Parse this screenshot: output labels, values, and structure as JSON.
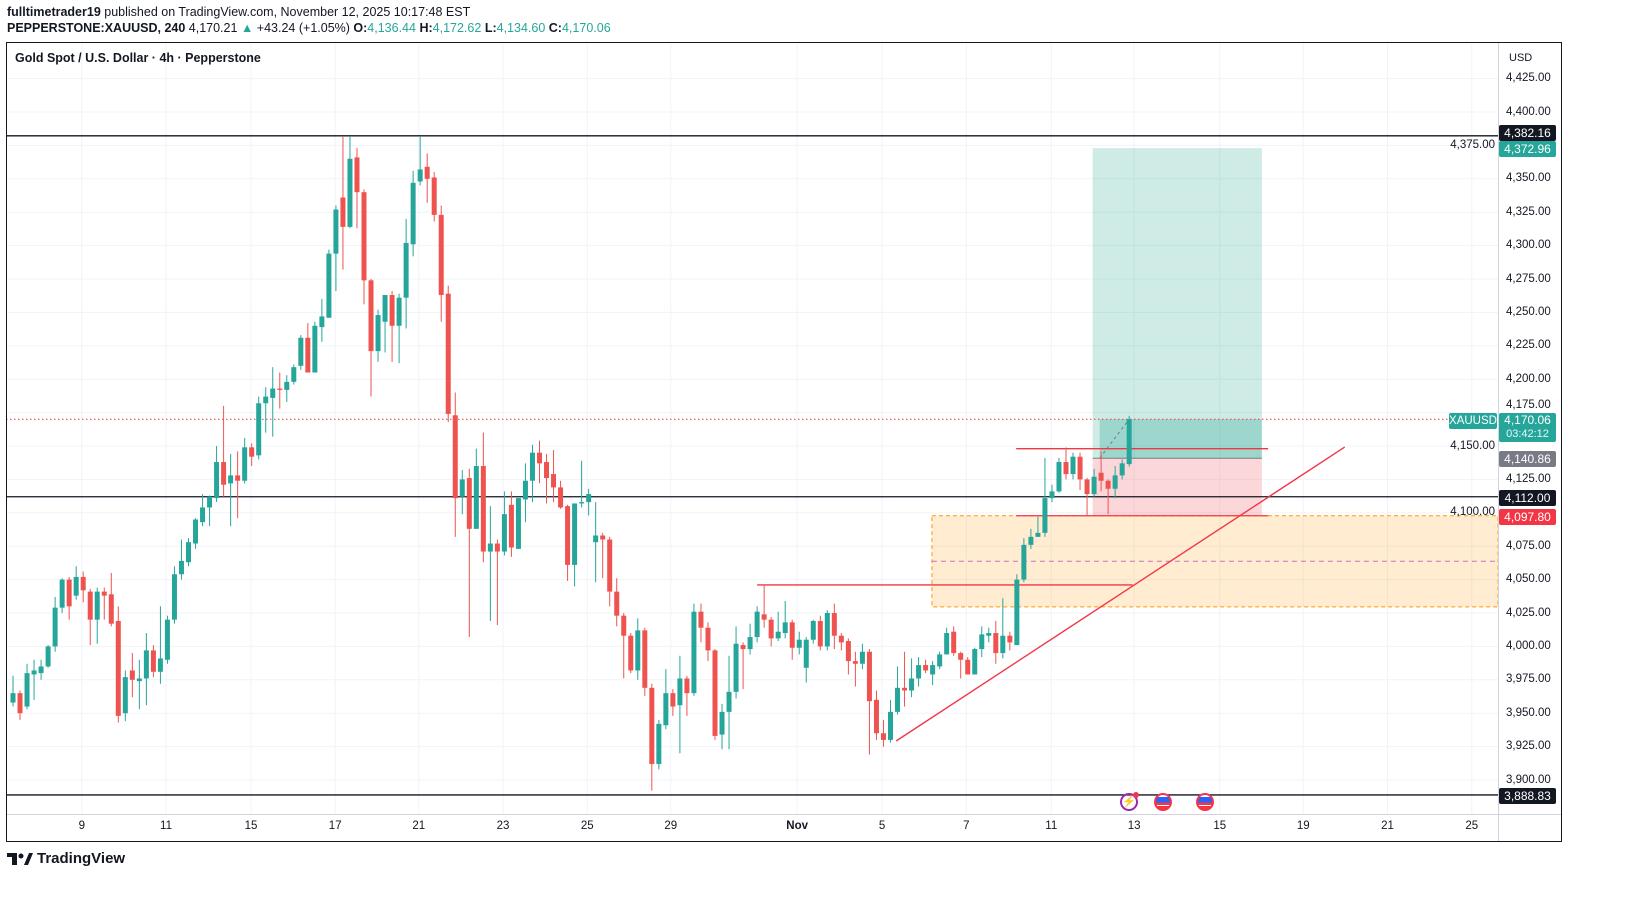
{
  "header": {
    "author": "fulltimetrader19",
    "published": " published on TradingView.com, November 12, 2025 10:17:48 EST",
    "symbol": "PEPPERSTONE:XAUUSD, 240",
    "last": "4,170.21",
    "change": "+43.24 (+1.05%)",
    "o_label": "O:",
    "o": "4,136.44",
    "h_label": "H:",
    "h": "4,172.62",
    "l_label": "L:",
    "l": "4,134.60",
    "c_label": "C:",
    "c": "4,170.06"
  },
  "legend": {
    "title": "Gold Spot / U.S. Dollar · 4h · Pepperstone"
  },
  "price_axis": {
    "currency": "USD"
  },
  "badges": {
    "resistance": "4,382.16",
    "target": "4,372.96",
    "symbol": "XAUUSD",
    "current": "4,170.06",
    "countdown": "03:42:12",
    "entry": "4,140.86",
    "level": "4,112.00",
    "stop": "4,097.80",
    "support": "3,888.83"
  },
  "events": [
    {
      "icon": "lightning-event-icon"
    },
    {
      "icon": "us-flag-event-icon"
    },
    {
      "icon": "us-flag-event-icon"
    }
  ],
  "branding": {
    "logo": "TradingView"
  },
  "colors": {
    "up": "#26a69a",
    "down": "#ef5350",
    "profit_zone": "#26a69a",
    "loss_zone": "#f7525f",
    "zone": "#ff9800",
    "drawing": "#f23645"
  },
  "chart_data": {
    "type": "candlestick",
    "title": "Gold Spot / U.S. Dollar · 4h · Pepperstone",
    "ylim": [
      3850,
      4450
    ],
    "y_ticks": [
      4425,
      4400,
      4375,
      4350,
      4325,
      4300,
      4275,
      4250,
      4225,
      4200,
      4175,
      4150,
      4125,
      4100,
      4075,
      4050,
      4025,
      4000,
      3975,
      3950,
      3925,
      3900
    ],
    "x_ticks": [
      {
        "label": "9",
        "bar": 9.8
      },
      {
        "label": "11",
        "bar": 21.8
      },
      {
        "label": "15",
        "bar": 33.9
      },
      {
        "label": "17",
        "bar": 45.9
      },
      {
        "label": "21",
        "bar": 57.8
      },
      {
        "label": "23",
        "bar": 69.8
      },
      {
        "label": "25",
        "bar": 81.8
      },
      {
        "label": "29",
        "bar": 93.7
      },
      {
        "label": "Nov",
        "bar": 111.7,
        "bold": true
      },
      {
        "label": "5",
        "bar": 123.8
      },
      {
        "label": "7",
        "bar": 135.8
      },
      {
        "label": "11",
        "bar": 147.9
      },
      {
        "label": "13",
        "bar": 159.7
      },
      {
        "label": "15",
        "bar": 171.9
      },
      {
        "label": "19",
        "bar": 183.8
      },
      {
        "label": "21",
        "bar": 195.8
      },
      {
        "label": "25",
        "bar": 207.8
      }
    ],
    "grid": true,
    "candles_ohlc": [
      [
        3958,
        3978,
        3955,
        3965
      ],
      [
        3965,
        3967,
        3945,
        3950
      ],
      [
        3955,
        3987,
        3953,
        3980
      ],
      [
        3979,
        3990,
        3960,
        3982
      ],
      [
        3980,
        3990,
        3975,
        3985
      ],
      [
        3985,
        4001,
        3984,
        4000
      ],
      [
        4000,
        4037,
        3996,
        4029
      ],
      [
        4029,
        4051,
        4025,
        4050
      ],
      [
        4050,
        4052,
        4020,
        4030
      ],
      [
        4038,
        4060,
        4035,
        4052
      ],
      [
        4052,
        4056,
        4033,
        4042
      ],
      [
        4041,
        4043,
        4001,
        4020
      ],
      [
        4020,
        4044,
        4002,
        4041
      ],
      [
        4041,
        4044,
        4020,
        4038
      ],
      [
        4039,
        4055,
        4015,
        4017
      ],
      [
        4019,
        4030,
        3943,
        3948
      ],
      [
        3950,
        3982,
        3944,
        3977
      ],
      [
        3982,
        3995,
        3962,
        3975
      ],
      [
        3974,
        3990,
        3953,
        3976
      ],
      [
        3976,
        4010,
        3956,
        3997
      ],
      [
        3997,
        4001,
        3977,
        3981
      ],
      [
        3981,
        4030,
        3972,
        3991
      ],
      [
        3990,
        4023,
        3987,
        4020
      ],
      [
        4020,
        4060,
        4017,
        4054
      ],
      [
        4054,
        4080,
        4050,
        4064
      ],
      [
        4063,
        4081,
        4060,
        4078
      ],
      [
        4077,
        4096,
        4073,
        4095
      ],
      [
        4093,
        4114,
        4090,
        4104
      ],
      [
        4104,
        4113,
        4090,
        4112
      ],
      [
        4111,
        4150,
        4108,
        4138
      ],
      [
        4138,
        4180,
        4112,
        4121
      ],
      [
        4122,
        4144,
        4090,
        4128
      ],
      [
        4128,
        4146,
        4096,
        4124
      ],
      [
        4124,
        4156,
        4122,
        4149
      ],
      [
        4149,
        4152,
        4135,
        4142
      ],
      [
        4143,
        4187,
        4140,
        4182
      ],
      [
        4182,
        4194,
        4160,
        4187
      ],
      [
        4186,
        4209,
        4157,
        4193
      ],
      [
        4193,
        4205,
        4178,
        4192
      ],
      [
        4192,
        4203,
        4183,
        4198
      ],
      [
        4198,
        4211,
        4196,
        4209
      ],
      [
        4210,
        4233,
        4207,
        4231
      ],
      [
        4231,
        4242,
        4205,
        4205
      ],
      [
        4205,
        4243,
        4205,
        4240
      ],
      [
        4239,
        4260,
        4228,
        4247
      ],
      [
        4246,
        4297,
        4246,
        4294
      ],
      [
        4294,
        4330,
        4266,
        4327
      ],
      [
        4336,
        4382,
        4282,
        4314
      ],
      [
        4314,
        4382,
        4313,
        4365
      ],
      [
        4366,
        4373,
        4313,
        4340
      ],
      [
        4340,
        4342,
        4256,
        4274
      ],
      [
        4274,
        4275,
        4187,
        4221
      ],
      [
        4221,
        4252,
        4213,
        4248
      ],
      [
        4243,
        4263,
        4220,
        4263
      ],
      [
        4263,
        4266,
        4213,
        4240
      ],
      [
        4240,
        4264,
        4212,
        4261
      ],
      [
        4261,
        4320,
        4238,
        4302
      ],
      [
        4301,
        4356,
        4292,
        4347
      ],
      [
        4348,
        4382,
        4345,
        4357
      ],
      [
        4359,
        4369,
        4332,
        4350
      ],
      [
        4351,
        4355,
        4318,
        4323
      ],
      [
        4323,
        4330,
        4243,
        4263
      ],
      [
        4264,
        4270,
        4168,
        4174
      ],
      [
        4173,
        4190,
        4082,
        4111
      ],
      [
        4112,
        4132,
        4099,
        4125
      ],
      [
        4126,
        4133,
        4007,
        4088
      ],
      [
        4088,
        4148,
        4088,
        4135
      ],
      [
        4135,
        4160,
        4063,
        4071
      ],
      [
        4071,
        4105,
        4019,
        4077
      ],
      [
        4077,
        4080,
        4016,
        4071
      ],
      [
        4071,
        4116,
        4068,
        4099
      ],
      [
        4106,
        4116,
        4067,
        4074
      ],
      [
        4073,
        4111,
        4073,
        4111
      ],
      [
        4110,
        4137,
        4093,
        4124
      ],
      [
        4124,
        4151,
        4108,
        4145
      ],
      [
        4145,
        4154,
        4122,
        4137
      ],
      [
        4138,
        4144,
        4107,
        4126
      ],
      [
        4129,
        4147,
        4108,
        4119
      ],
      [
        4119,
        4124,
        4103,
        4104
      ],
      [
        4105,
        4106,
        4049,
        4061
      ],
      [
        4061,
        4107,
        4045,
        4107
      ],
      [
        4107,
        4139,
        4104,
        4108
      ],
      [
        4108,
        4118,
        4098,
        4114
      ],
      [
        4078,
        4108,
        4048,
        4083
      ],
      [
        4083,
        4085,
        4051,
        4080
      ],
      [
        4080,
        4082,
        4030,
        4041
      ],
      [
        4041,
        4051,
        4015,
        4023
      ],
      [
        4023,
        4025,
        3976,
        4008
      ],
      [
        4008,
        4010,
        3980,
        3982
      ],
      [
        3982,
        4021,
        3975,
        4012
      ],
      [
        4012,
        4014,
        3963,
        3969
      ],
      [
        3969,
        3972,
        3892,
        3912
      ],
      [
        3912,
        3945,
        3908,
        3942
      ],
      [
        3941,
        3983,
        3938,
        3965
      ],
      [
        3965,
        3968,
        3948,
        3955
      ],
      [
        3956,
        3993,
        3920,
        3976
      ],
      [
        3976,
        3978,
        3948,
        3965
      ],
      [
        3965,
        4032,
        3963,
        4026
      ],
      [
        4026,
        4032,
        4003,
        4014
      ],
      [
        4014,
        4018,
        3989,
        3997
      ],
      [
        3997,
        3998,
        3930,
        3933
      ],
      [
        3934,
        3957,
        3923,
        3951
      ],
      [
        3951,
        3993,
        3923,
        3966
      ],
      [
        3966,
        4015,
        3961,
        4002
      ],
      [
        4001,
        4003,
        3968,
        3998
      ],
      [
        3998,
        4017,
        3994,
        4007
      ],
      [
        4007,
        4030,
        4003,
        4026
      ],
      [
        4024,
        4046,
        4014,
        4020
      ],
      [
        4020,
        4022,
        4000,
        4006
      ],
      [
        4006,
        4026,
        4004,
        4011
      ],
      [
        4010,
        4034,
        4006,
        4018
      ],
      [
        4018,
        4020,
        3990,
        3999
      ],
      [
        3999,
        4011,
        3994,
        4005
      ],
      [
        3984,
        4007,
        3973,
        4005
      ],
      [
        4005,
        4020,
        4002,
        4019
      ],
      [
        4019,
        4023,
        3997,
        4000
      ],
      [
        4000,
        4027,
        3997,
        4025
      ],
      [
        4025,
        4032,
        3998,
        4008
      ],
      [
        4008,
        4010,
        3997,
        4003
      ],
      [
        4004,
        4006,
        3979,
        3989
      ],
      [
        3989,
        3996,
        3970,
        3987
      ],
      [
        3987,
        4002,
        3983,
        3996
      ],
      [
        3996,
        3998,
        3919,
        3959
      ],
      [
        3960,
        3967,
        3930,
        3935
      ],
      [
        3935,
        3945,
        3925,
        3930
      ],
      [
        3930,
        3960,
        3928,
        3951
      ],
      [
        3951,
        3985,
        3949,
        3969
      ],
      [
        3969,
        3996,
        3955,
        3967
      ],
      [
        3967,
        3991,
        3962,
        3976
      ],
      [
        3976,
        3992,
        3970,
        3986
      ],
      [
        3986,
        3990,
        3980,
        3982
      ],
      [
        3979,
        3989,
        3971,
        3986
      ],
      [
        3985,
        3996,
        3983,
        3994
      ],
      [
        3994,
        4014,
        3994,
        4010
      ],
      [
        4011,
        4015,
        3993,
        3995
      ],
      [
        3995,
        3996,
        3976,
        3990
      ],
      [
        3990,
        3992,
        3979,
        3979
      ],
      [
        3979,
        3999,
        3979,
        3998
      ],
      [
        3998,
        4015,
        3992,
        4009
      ],
      [
        4008,
        4014,
        4003,
        4010
      ],
      [
        4010,
        4019,
        3987,
        3995
      ],
      [
        3995,
        4036,
        3991,
        4008
      ],
      [
        4008,
        4011,
        3997,
        4003
      ],
      [
        4001,
        4054,
        4001,
        4050
      ],
      [
        4050,
        4081,
        4048,
        4076
      ],
      [
        4076,
        4088,
        4073,
        4082
      ],
      [
        4082,
        4097,
        4082,
        4085
      ],
      [
        4085,
        4141,
        4082,
        4111
      ],
      [
        4111,
        4121,
        4108,
        4116
      ],
      [
        4116,
        4141,
        4115,
        4138
      ],
      [
        4138,
        4149,
        4125,
        4129
      ],
      [
        4129,
        4145,
        4125,
        4142
      ],
      [
        4142,
        4145,
        4117,
        4125
      ],
      [
        4125,
        4126,
        4098,
        4114
      ],
      [
        4114,
        4133,
        4112,
        4127
      ],
      [
        4130,
        4146,
        4116,
        4124
      ],
      [
        4124,
        4125,
        4099,
        4118
      ],
      [
        4118,
        4135,
        4111,
        4128
      ],
      [
        4128,
        4140,
        4125,
        4137
      ],
      [
        4136.44,
        4172.62,
        4134.6,
        4170.06
      ]
    ],
    "drawings": {
      "horizontal_levels": [
        4382.16,
        4112.0,
        3888.83
      ],
      "current_price": 4170.06,
      "long_position": {
        "target": 4372.96,
        "entry": 4140.86,
        "stop": 4097.8
      },
      "resistance_lines": [
        4148.0,
        4097.8,
        4046.0
      ],
      "demand_zone": {
        "top": 4097.8,
        "bottom": 4029.6,
        "mid": 4063.7
      },
      "trendline": {
        "from": {
          "bar": 125.8,
          "price": 3929.2
        },
        "to": {
          "bar": 189.7,
          "price": 4149.2
        }
      }
    }
  }
}
